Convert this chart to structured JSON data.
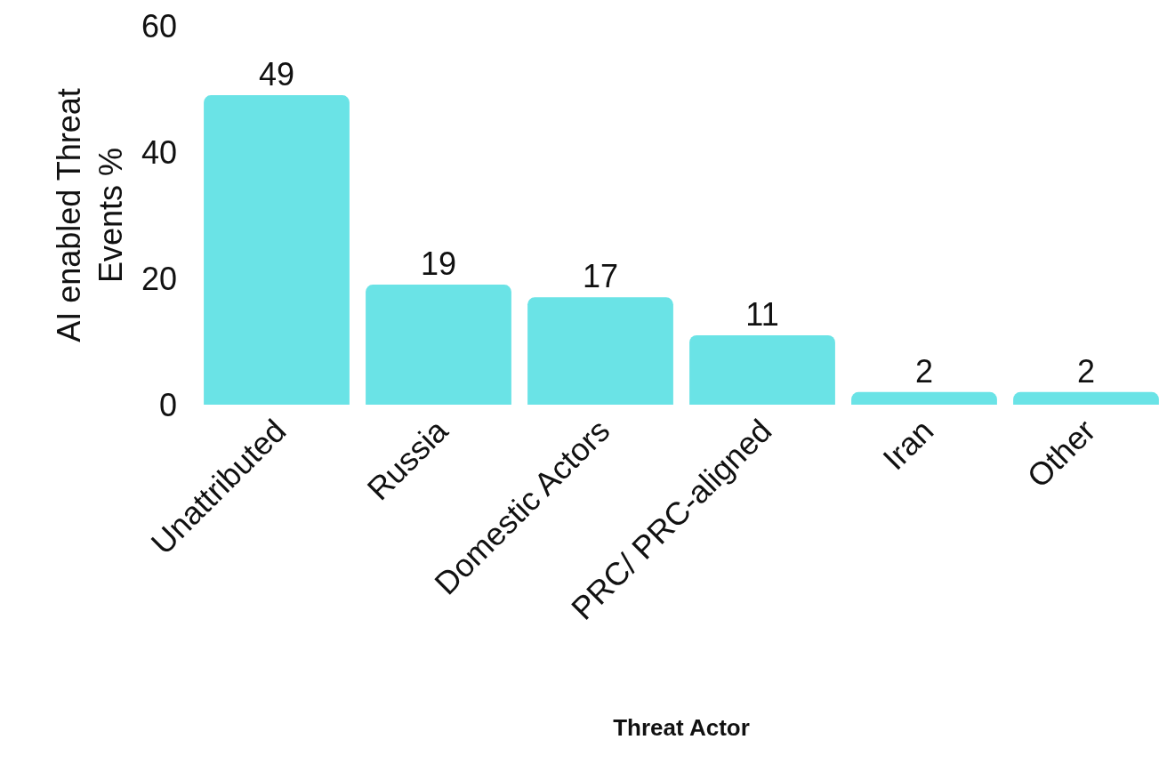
{
  "chart_data": {
    "type": "bar",
    "xlabel": "Threat Actor",
    "ylabel": "AI enabled Threat Events %",
    "categories": [
      "Unattributed",
      "Russia",
      "Domestic Actors",
      "PRC/ PRC-aligned",
      "Iran",
      "Other"
    ],
    "values": [
      49,
      19,
      17,
      11,
      2,
      2
    ],
    "color": "#6ae3e6",
    "ylim": [
      0,
      60
    ],
    "yticks": [
      0,
      20,
      40,
      60
    ],
    "legend": false,
    "data_labels": true
  }
}
